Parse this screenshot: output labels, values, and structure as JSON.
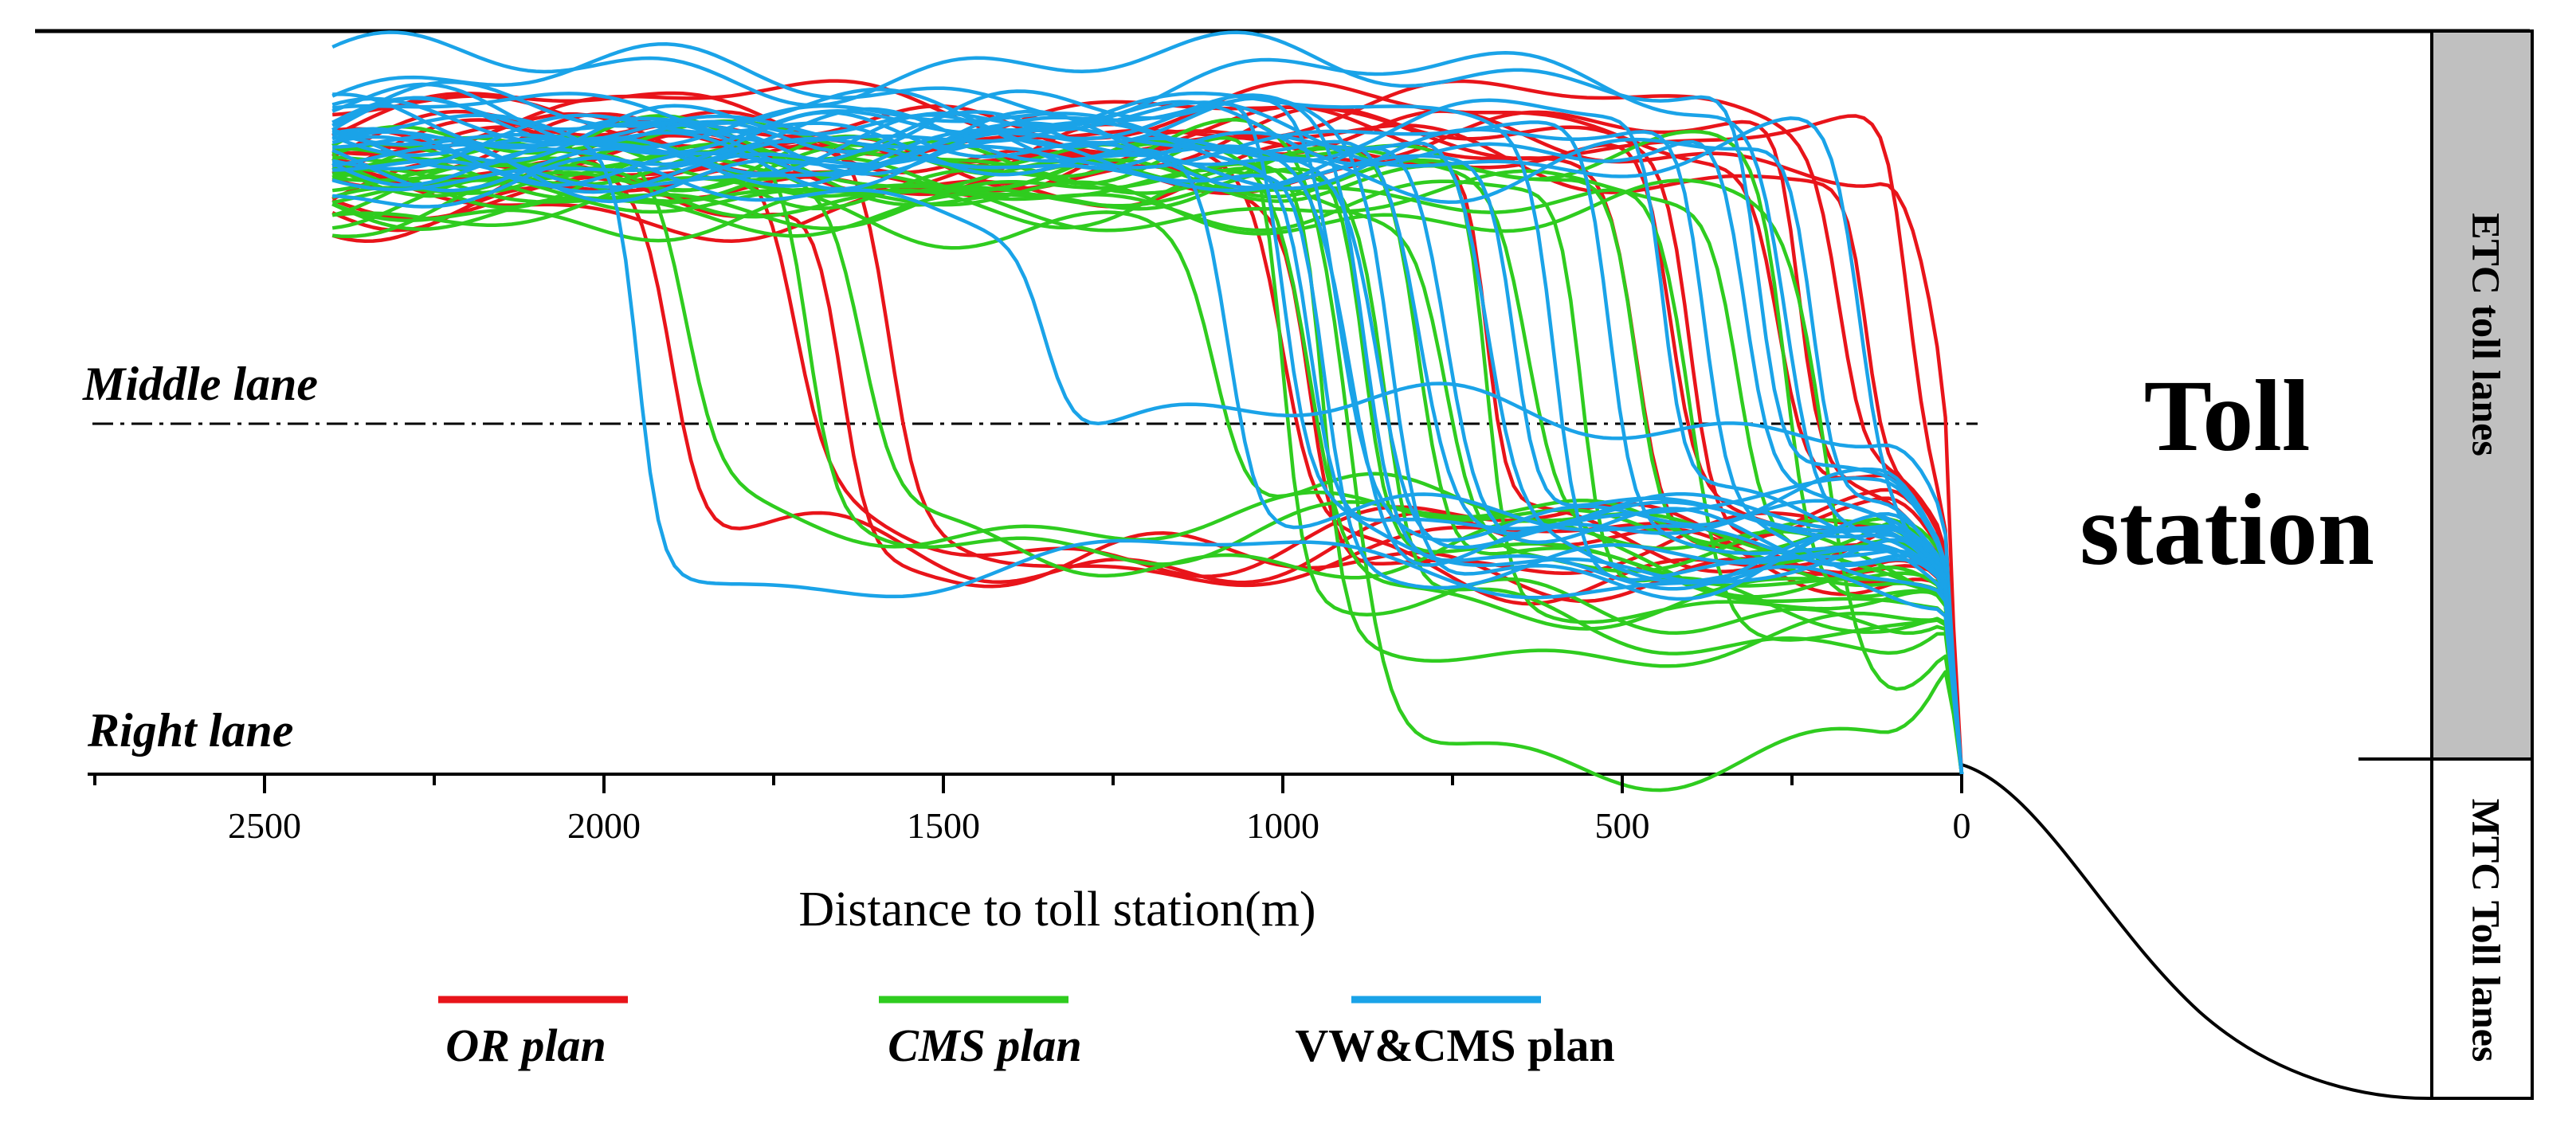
{
  "chart_data": {
    "type": "line",
    "title": "",
    "xlabel": "Distance to toll station(m)",
    "ylabel": "",
    "x_reversed": true,
    "xlim": [
      2750,
      0
    ],
    "x_ticks": [
      2500,
      2000,
      1500,
      1000,
      500,
      0
    ],
    "ylim": [
      0,
      1
    ],
    "y_levels": {
      "right_lane": 0.0,
      "middle_lane": 0.46,
      "etc_toll_lanes_top": 1.0
    },
    "annotations": {
      "middle_lane": "Middle lane",
      "right_lane": "Right lane",
      "toll_station_line1": "Toll",
      "toll_station_line2": "station",
      "etc_lanes": "ETC toll lanes",
      "mtc_lanes": "MTC Toll lanes"
    },
    "legend_position": "bottom",
    "series": [
      {
        "name": "OR plan",
        "color": "#e8141a",
        "trajectories": [
          {
            "x0": 0.79,
            "lc": 1900,
            "y1": 0.3
          },
          {
            "x0": 0.78,
            "lc": 1720,
            "y1": 0.32
          },
          {
            "x0": 0.8,
            "lc": 1580,
            "y1": 0.3
          },
          {
            "x0": 0.82,
            "lc": 1000,
            "y1": 0.29
          },
          {
            "x0": 0.77,
            "lc": 960,
            "y1": 0.31
          },
          {
            "x0": 0.84,
            "lc": 480,
            "y1": 0.36
          },
          {
            "x0": 0.82,
            "lc": 430,
            "y1": 0.34
          },
          {
            "x0": 0.85,
            "lc": 400,
            "y1": 0.37
          },
          {
            "x0": 0.88,
            "lc": 270,
            "y1": 0.4
          },
          {
            "x0": 0.86,
            "lc": 240,
            "y1": 0.38
          },
          {
            "x0": 0.89,
            "lc": 180,
            "y1": 0.45
          },
          {
            "x0": 0.83,
            "lc": 140,
            "y1": 0.4
          },
          {
            "x0": 0.87,
            "lc": 80,
            "y1": 0.42
          },
          {
            "x0": 0.79,
            "lc": 1650,
            "y1": 0.28
          },
          {
            "x0": 0.81,
            "lc": 700,
            "y1": 0.32
          },
          {
            "x0": 0.84,
            "lc": 90,
            "y1": 0.85
          }
        ]
      },
      {
        "name": "CMS plan",
        "color": "#2fcc1f",
        "trajectories": [
          {
            "x0": 0.83,
            "lc": 1880,
            "y1": 0.34
          },
          {
            "x0": 0.79,
            "lc": 1700,
            "y1": 0.33
          },
          {
            "x0": 0.81,
            "lc": 1620,
            "y1": 0.3
          },
          {
            "x0": 0.76,
            "lc": 1100,
            "y1": 0.35
          },
          {
            "x0": 0.84,
            "lc": 1000,
            "y1": 0.22
          },
          {
            "x0": 0.8,
            "lc": 960,
            "y1": 0.25
          },
          {
            "x0": 0.78,
            "lc": 940,
            "y1": 0.18
          },
          {
            "x0": 0.82,
            "lc": 900,
            "y1": 0.04
          },
          {
            "x0": 0.8,
            "lc": 880,
            "y1": 0.28
          },
          {
            "x0": 0.79,
            "lc": 850,
            "y1": 0.2
          },
          {
            "x0": 0.83,
            "lc": 800,
            "y1": 0.26
          },
          {
            "x0": 0.77,
            "lc": 760,
            "y1": 0.31
          },
          {
            "x0": 0.82,
            "lc": 700,
            "y1": 0.24
          },
          {
            "x0": 0.8,
            "lc": 640,
            "y1": 0.29
          },
          {
            "x0": 0.78,
            "lc": 560,
            "y1": 0.22
          },
          {
            "x0": 0.81,
            "lc": 480,
            "y1": 0.27
          },
          {
            "x0": 0.79,
            "lc": 400,
            "y1": 0.17
          },
          {
            "x0": 0.77,
            "lc": 330,
            "y1": 0.3
          },
          {
            "x0": 0.82,
            "lc": 260,
            "y1": 0.25
          },
          {
            "x0": 0.76,
            "lc": 200,
            "y1": 0.08
          }
        ]
      },
      {
        "name": "VW&CMS plan",
        "color": "#1aa3e8",
        "trajectories": [
          {
            "x0": 0.95,
            "lc": 300,
            "y1": 0.38
          },
          {
            "x0": 0.93,
            "lc": 260,
            "y1": 0.34
          },
          {
            "x0": 0.84,
            "lc": 1950,
            "y1": 0.28
          },
          {
            "x0": 0.78,
            "lc": 1350,
            "y1": 0.48
          },
          {
            "x0": 0.85,
            "lc": 1080,
            "y1": 0.33
          },
          {
            "x0": 0.87,
            "lc": 1000,
            "y1": 0.31
          },
          {
            "x0": 0.86,
            "lc": 960,
            "y1": 0.34
          },
          {
            "x0": 0.82,
            "lc": 940,
            "y1": 0.28
          },
          {
            "x0": 0.88,
            "lc": 920,
            "y1": 0.36
          },
          {
            "x0": 0.84,
            "lc": 900,
            "y1": 0.32
          },
          {
            "x0": 0.86,
            "lc": 880,
            "y1": 0.3
          },
          {
            "x0": 0.83,
            "lc": 860,
            "y1": 0.35
          },
          {
            "x0": 0.85,
            "lc": 840,
            "y1": 0.29
          },
          {
            "x0": 0.87,
            "lc": 800,
            "y1": 0.33
          },
          {
            "x0": 0.84,
            "lc": 760,
            "y1": 0.31
          },
          {
            "x0": 0.86,
            "lc": 700,
            "y1": 0.27
          },
          {
            "x0": 0.82,
            "lc": 660,
            "y1": 0.34
          },
          {
            "x0": 0.88,
            "lc": 600,
            "y1": 0.3
          },
          {
            "x0": 0.85,
            "lc": 520,
            "y1": 0.32
          },
          {
            "x0": 0.87,
            "lc": 440,
            "y1": 0.35
          },
          {
            "x0": 0.84,
            "lc": 380,
            "y1": 0.3
          },
          {
            "x0": 0.86,
            "lc": 320,
            "y1": 0.33
          },
          {
            "x0": 0.83,
            "lc": 220,
            "y1": 0.31
          },
          {
            "x0": 0.85,
            "lc": 150,
            "y1": 0.29
          }
        ]
      }
    ]
  },
  "legend": [
    {
      "label": "OR plan",
      "color": "#e8141a",
      "italic": true
    },
    {
      "label": "CMS plan",
      "color": "#2fcc1f",
      "italic": true
    },
    {
      "label": "VW&CMS plan",
      "color": "#1aa3e8",
      "italic": false
    }
  ],
  "etc_box_color": "#c0c0c0"
}
